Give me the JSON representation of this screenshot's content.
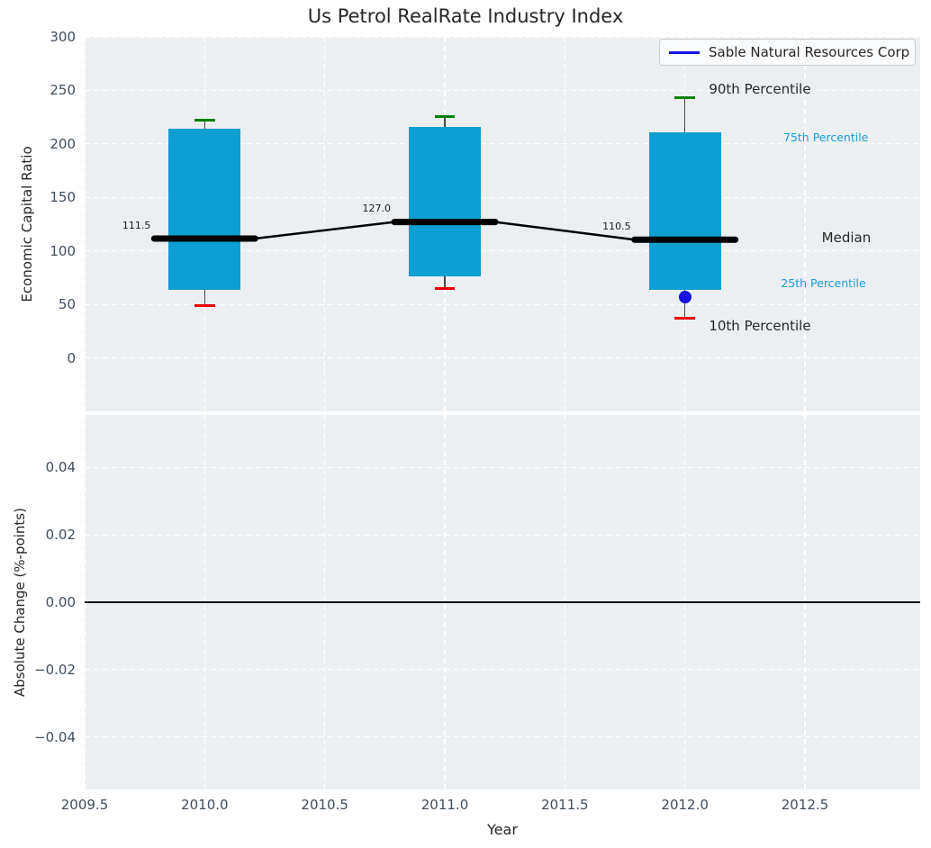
{
  "title": "Us Petrol RealRate Industry Index",
  "legend": {
    "label": "Sable Natural Resources Corp",
    "line_color": "#1414dd"
  },
  "colors": {
    "axes_bg": "#eceff1",
    "grid": "#ffffff",
    "bar": "#0d9ed2",
    "whisker": "#4a4a4a",
    "cap_top": "#008000",
    "cap_bottom": "#ea0000",
    "median": "#000000",
    "company_marker": "#1414dd",
    "tick": "#3f4d5e",
    "annotation_blue": "#199ed9",
    "text": "#262626",
    "zero_line": "#000000"
  },
  "chart_data": [
    {
      "type": "boxplot",
      "panel": "top",
      "ylabel": "Economic Capital Ratio",
      "ylim": [
        -50,
        300
      ],
      "ytick_values": [
        0,
        50,
        100,
        150,
        200,
        250,
        300
      ],
      "ytick_labels": [
        "0",
        "50",
        "100",
        "150",
        "200",
        "250",
        "300"
      ],
      "xlim": [
        2009.5,
        2012.98
      ],
      "xticks": [
        2009.5,
        2010.0,
        2010.5,
        2011.0,
        2011.5,
        2012.0,
        2012.5
      ],
      "xtick_labels": [
        "2009.5",
        "2010.0",
        "2010.5",
        "2011.0",
        "2011.5",
        "2012.0",
        "2012.5"
      ],
      "grid": true,
      "bar_width": 0.3,
      "cap_halfwidth": 0.042,
      "median_halfwidth": 0.21,
      "boxes": [
        {
          "year": 2010,
          "p10": 49,
          "p25": 63.5,
          "median": 111.5,
          "p75": 214,
          "p90": 222,
          "median_label": "111.5"
        },
        {
          "year": 2011,
          "p10": 65,
          "p25": 76.5,
          "median": 127.0,
          "p75": 216,
          "p90": 225.5,
          "median_label": "127.0"
        },
        {
          "year": 2012,
          "p10": 37,
          "p25": 63.5,
          "median": 110.5,
          "p75": 211,
          "p90": 243,
          "median_label": "110.5"
        }
      ],
      "median_label_offset": {
        "dx": -0.225,
        "dy": 12
      },
      "median_label_size": 11,
      "company_point": {
        "name": "Sable Natural Resources Corp",
        "x": 2012,
        "y": 56.5
      },
      "annotations": [
        {
          "text": "90th Percentile",
          "x": 2012.1,
          "y": 250,
          "color": "#262626",
          "size": 15
        },
        {
          "text": "75th Percentile",
          "x": 2012.41,
          "y": 205,
          "color": "#199ed9",
          "size": 12.5
        },
        {
          "text": "Median",
          "x": 2012.57,
          "y": 111,
          "color": "#262626",
          "size": 15
        },
        {
          "text": "25th Percentile",
          "x": 2012.4,
          "y": 69,
          "color": "#199ed9",
          "size": 12.5
        },
        {
          "text": "10th Percentile",
          "x": 2012.1,
          "y": 28,
          "color": "#262626",
          "size": 15
        }
      ]
    },
    {
      "type": "line",
      "panel": "bottom",
      "ylabel": "Absolute Change (%-points)",
      "xlabel": "Year",
      "ylim": [
        -0.0556,
        0.0556
      ],
      "ytick_values": [
        0.04,
        0.02,
        0,
        -0.02,
        -0.04
      ],
      "ytick_labels": [
        "0.04",
        "0.02",
        "0.00",
        "−0.02",
        "−0.04"
      ],
      "grid": true,
      "zero_line": 0,
      "series": [
        {
          "name": "Sable Natural Resources Corp",
          "color": "#1414dd",
          "x": [],
          "y": []
        }
      ]
    }
  ]
}
